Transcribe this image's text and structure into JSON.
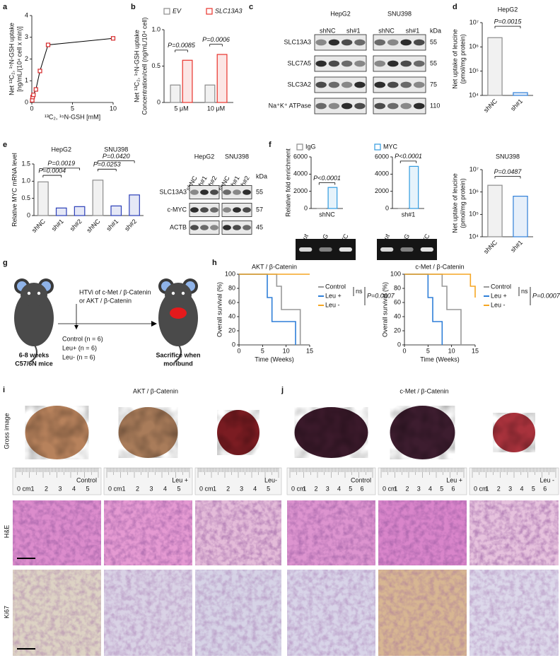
{
  "panel_letters": [
    "a",
    "b",
    "c",
    "d",
    "e",
    "f",
    "g",
    "h",
    "i",
    "j"
  ],
  "chart_data": [
    {
      "type": "scatter",
      "x": [
        0.05,
        0.1,
        0.2,
        0.5,
        1,
        2,
        10
      ],
      "values": [
        0.1,
        0.25,
        0.35,
        0.6,
        1.45,
        2.65,
        2.95
      ],
      "color": "#d62728",
      "xlim": [
        0,
        10
      ],
      "xticks": [
        0,
        5,
        10
      ],
      "ylim": [
        0,
        4
      ],
      "yticks": [
        0,
        1,
        2,
        3,
        4
      ],
      "xlabel": "¹³C₂, ¹⁵N-GSH [mM]",
      "ylabel": [
        "Net ¹³C₂, ¹⁵N-GSH uptake",
        "[ng/mL/(10⁴ cell x min)]"
      ]
    },
    {
      "type": "bar",
      "categories": [
        "5 μM",
        "10 μM"
      ],
      "series": [
        {
          "name": "EV",
          "color": "#8c8c8c",
          "values": [
            0.24,
            0.24
          ]
        },
        {
          "name": "SLC13A3",
          "color": "#e8322b",
          "values": [
            0.58,
            0.66
          ]
        }
      ],
      "ylim": [
        0,
        1
      ],
      "yticks": [
        0,
        0.5,
        {
          "value": 1,
          "label": "1.0"
        }
      ],
      "ylabel": [
        "Net ¹³C₂, ¹⁵N-GSH uptake",
        "Concentration/cell (ng/mL/10⁴ cell)"
      ],
      "annotations": [
        "P=0.0085",
        "P=0.0006"
      ],
      "legend": "top"
    },
    {
      "type": "bar",
      "title": "HepG2",
      "categories": [
        "shNC",
        "sh#1"
      ],
      "values": [
        2400000,
        13000
      ],
      "colors": [
        "#8c8c8c",
        "#2f7fd8"
      ],
      "log": true,
      "ylim": [
        10000,
        10000000
      ],
      "yticks": [
        {
          "value": 10000,
          "label": "10⁴"
        },
        {
          "value": 100000,
          "label": "10⁵"
        },
        {
          "value": 1000000,
          "label": "10⁶"
        },
        {
          "value": 10000000,
          "label": "10⁷"
        }
      ],
      "ylabel": [
        "Net uptake of leucine",
        "(pmol/mg protein)"
      ],
      "annotations": [
        "P=0.0015"
      ]
    },
    {
      "type": "bar",
      "categories": [
        "shNC",
        "sh#1",
        "sh#2",
        "shNC",
        "sh#1",
        "sh#2"
      ],
      "groups": [
        "HepG2",
        "SNU398"
      ],
      "values": [
        0.98,
        0.22,
        0.26,
        1.03,
        0.28,
        0.6
      ],
      "colors": [
        "#8c8c8c",
        "#2b3fb8",
        "#2b3fb8",
        "#8c8c8c",
        "#2b3fb8",
        "#2b3fb8"
      ],
      "ylim": [
        0,
        1.5
      ],
      "yticks": [
        0,
        0.5,
        {
          "value": 1,
          "label": "1.0"
        },
        1.5
      ],
      "ylabel": [
        "Relative MYC mRNA level"
      ],
      "annotations": [
        "P=0.0004",
        "P=0.0019",
        "P=0.0420",
        "P=0.0253"
      ]
    },
    {
      "type": "bar",
      "facet": true,
      "categories": [
        "shNC",
        "sh#1"
      ],
      "series": [
        {
          "name": "IgG",
          "color": "#8c8c8c",
          "values": [
            5,
            5
          ]
        },
        {
          "name": "MYC",
          "color": "#2f9ae0",
          "values": [
            2450,
            4900
          ]
        }
      ],
      "ylim": [
        0,
        6000
      ],
      "yticks": [
        0,
        2000,
        4000,
        6000
      ],
      "ylabel": [
        "Relative fold enrichment"
      ],
      "annotations": [
        "P<0.0001",
        "P<0.0001"
      ],
      "legend": "top"
    },
    {
      "type": "bar",
      "title": "SNU398",
      "categories": [
        "shNC",
        "sh#1"
      ],
      "values": [
        2000000,
        650000
      ],
      "colors": [
        "#8c8c8c",
        "#2f7fd8"
      ],
      "log": true,
      "ylim": [
        10000,
        10000000
      ],
      "yticks": [
        {
          "value": 10000,
          "label": "10⁴"
        },
        {
          "value": 100000,
          "label": "10⁵"
        },
        {
          "value": 1000000,
          "label": "10⁶"
        },
        {
          "value": 10000000,
          "label": "10⁷"
        }
      ],
      "ylabel": [
        "Net uptake of leucine",
        "(pmol/mg protein)"
      ],
      "annotations": [
        "P=0.0487"
      ]
    },
    {
      "type": "line",
      "step": true,
      "title": "AKT / β-Catenin",
      "x": [
        0,
        5,
        6,
        7,
        8,
        9,
        10,
        11,
        12,
        13,
        14,
        15
      ],
      "series": [
        {
          "name": "Control",
          "color": "#999999",
          "values": [
            100,
            100,
            100,
            100,
            83,
            50,
            50,
            50,
            50,
            0,
            null,
            null
          ]
        },
        {
          "name": "Leu +",
          "color": "#2f7fd8",
          "values": [
            100,
            100,
            67,
            33,
            33,
            33,
            33,
            33,
            0,
            null,
            null,
            null
          ]
        },
        {
          "name": "Leu -",
          "color": "#f5a623",
          "values": [
            100,
            100,
            100,
            100,
            100,
            100,
            100,
            100,
            100,
            100,
            100,
            100
          ]
        }
      ],
      "xlim": [
        0,
        15
      ],
      "xticks": [
        0,
        5,
        10,
        15
      ],
      "ylim": [
        0,
        100
      ],
      "yticks": [
        0,
        20,
        40,
        60,
        80,
        100
      ],
      "xlabel": "Time (Weeks)",
      "ylabel": [
        "Overall survival (%)"
      ],
      "annotations": [
        "ns",
        "P=0.0007"
      ],
      "legend": "right"
    },
    {
      "type": "line",
      "step": true,
      "title": "c-Met / β-Catenin",
      "x": [
        0,
        5,
        6,
        7,
        8,
        9,
        10,
        11,
        12,
        13,
        14,
        15
      ],
      "series": [
        {
          "name": "Control",
          "color": "#999999",
          "values": [
            100,
            100,
            100,
            100,
            83,
            50,
            50,
            50,
            0,
            null,
            null,
            null
          ]
        },
        {
          "name": "Leu +",
          "color": "#2f7fd8",
          "values": [
            100,
            67,
            33,
            33,
            0,
            null,
            null,
            null,
            null,
            null,
            null,
            null
          ]
        },
        {
          "name": "Leu -",
          "color": "#f5a623",
          "values": [
            100,
            100,
            100,
            100,
            100,
            100,
            100,
            100,
            100,
            100,
            83,
            67
          ]
        }
      ],
      "xlim": [
        0,
        15
      ],
      "xticks": [
        0,
        5,
        10,
        15
      ],
      "ylim": [
        0,
        100
      ],
      "yticks": [
        0,
        20,
        40,
        60,
        80,
        100
      ],
      "xlabel": "Time (Weeks)",
      "ylabel": [
        "Overall survival (%)"
      ],
      "annotations": [
        "ns",
        "P=0.0007"
      ],
      "legend": "right"
    }
  ],
  "blot_c": {
    "cell_lines": [
      "HepG2",
      "SNU398"
    ],
    "lanes": [
      "shNC",
      "sh#1"
    ],
    "rows": [
      "SLC13A3",
      "SLC7A5",
      "SLC3A2",
      "Na⁺K⁺ ATPase"
    ],
    "kda_label": "kDa",
    "kda": [
      "55",
      "55",
      "75",
      "110"
    ]
  },
  "blot_e": {
    "cell_lines": [
      "HepG2",
      "SNU398"
    ],
    "lanes": [
      "shNC",
      "sh#1",
      "sh#2"
    ],
    "rows": [
      "SLC13A3",
      "c-MYC",
      "ACTB"
    ],
    "kda_label": "kDa",
    "kda": [
      "55",
      "57",
      "45"
    ]
  },
  "gel_f": {
    "lanes": [
      "Input",
      "IgG",
      "MYC"
    ]
  },
  "schematic_g": {
    "mouse_label": [
      "6-8 weeks",
      "C57/6N mice"
    ],
    "injection": [
      "HTVi of c-Met / β-Catenin",
      "or  AKT / β-Catenin"
    ],
    "groups": [
      "Control  (n = 6)",
      "Leu+  (n = 6)",
      "Leu-  (n = 6)"
    ],
    "endpoint": [
      "Sacrifice when",
      "moribund"
    ]
  },
  "images": {
    "titles": [
      "AKT / β-Catenin",
      "c-Met / β-Catenin"
    ],
    "row_labels": [
      "Gross image",
      "H&E",
      "Ki67"
    ],
    "rulers": [
      {
        "label": "Control",
        "ticks": [
          "0 cm",
          "1",
          "2",
          "3",
          "4",
          "5"
        ]
      },
      {
        "label": "Leu +",
        "ticks": [
          "0 cm",
          "1",
          "2",
          "3",
          "4",
          "5"
        ]
      },
      {
        "label": "Leu-",
        "ticks": [
          "0 cm",
          "1",
          "2",
          "3",
          "4",
          "5"
        ]
      },
      {
        "label": "Control",
        "ticks": [
          "0 cm",
          "1",
          "2",
          "3",
          "4",
          "5",
          "6"
        ]
      },
      {
        "label": "Leu +",
        "ticks": [
          "0 cm",
          "1",
          "2",
          "3",
          "4",
          "5",
          "6"
        ]
      },
      {
        "label": "Leu -",
        "ticks": [
          "0 cm",
          "1",
          "2",
          "3",
          "4",
          "5",
          "6"
        ]
      }
    ]
  }
}
